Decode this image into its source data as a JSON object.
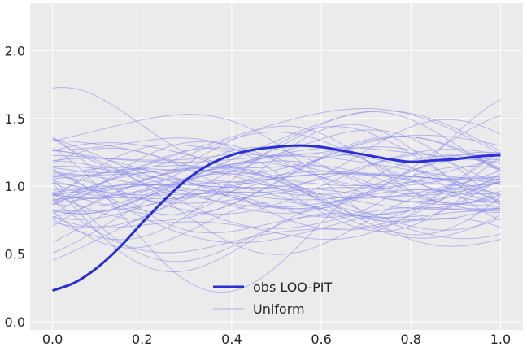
{
  "chart_data": {
    "type": "line",
    "title": "",
    "xlabel": "",
    "ylabel": "",
    "xlim": [
      -0.05,
      1.05
    ],
    "ylim": [
      -0.06,
      2.35
    ],
    "xticks": [
      0.0,
      0.2,
      0.4,
      0.6,
      0.8,
      1.0
    ],
    "xtick_labels": [
      "0.0",
      "0.2",
      "0.4",
      "0.6",
      "0.8",
      "1.0"
    ],
    "yticks": [
      0.0,
      0.5,
      1.0,
      1.5,
      2.0
    ],
    "ytick_labels": [
      "0.0",
      "0.5",
      "1.0",
      "1.5",
      "2.0"
    ],
    "grid": true,
    "background": "#ebebeb",
    "legend_position": "lower-center",
    "colors": {
      "observed": "#2a2ed6",
      "reference": "#8888ee"
    },
    "series": [
      {
        "name": "obs LOO-PIT",
        "x": [
          0.0,
          0.05,
          0.1,
          0.15,
          0.2,
          0.25,
          0.3,
          0.35,
          0.4,
          0.45,
          0.5,
          0.55,
          0.6,
          0.65,
          0.7,
          0.75,
          0.8,
          0.85,
          0.9,
          0.95,
          1.0
        ],
        "y": [
          0.23,
          0.29,
          0.4,
          0.55,
          0.73,
          0.9,
          1.05,
          1.16,
          1.23,
          1.27,
          1.29,
          1.3,
          1.29,
          1.26,
          1.23,
          1.2,
          1.18,
          1.19,
          1.2,
          1.22,
          1.23
        ]
      },
      {
        "name": "Uniform",
        "samples": 60,
        "x": [
          0.0,
          0.5,
          1.0
        ],
        "y": [
          1.0,
          1.0,
          1.0
        ]
      }
    ]
  },
  "legend": {
    "observed_label": "obs LOO-PIT",
    "reference_label": "Uniform"
  }
}
